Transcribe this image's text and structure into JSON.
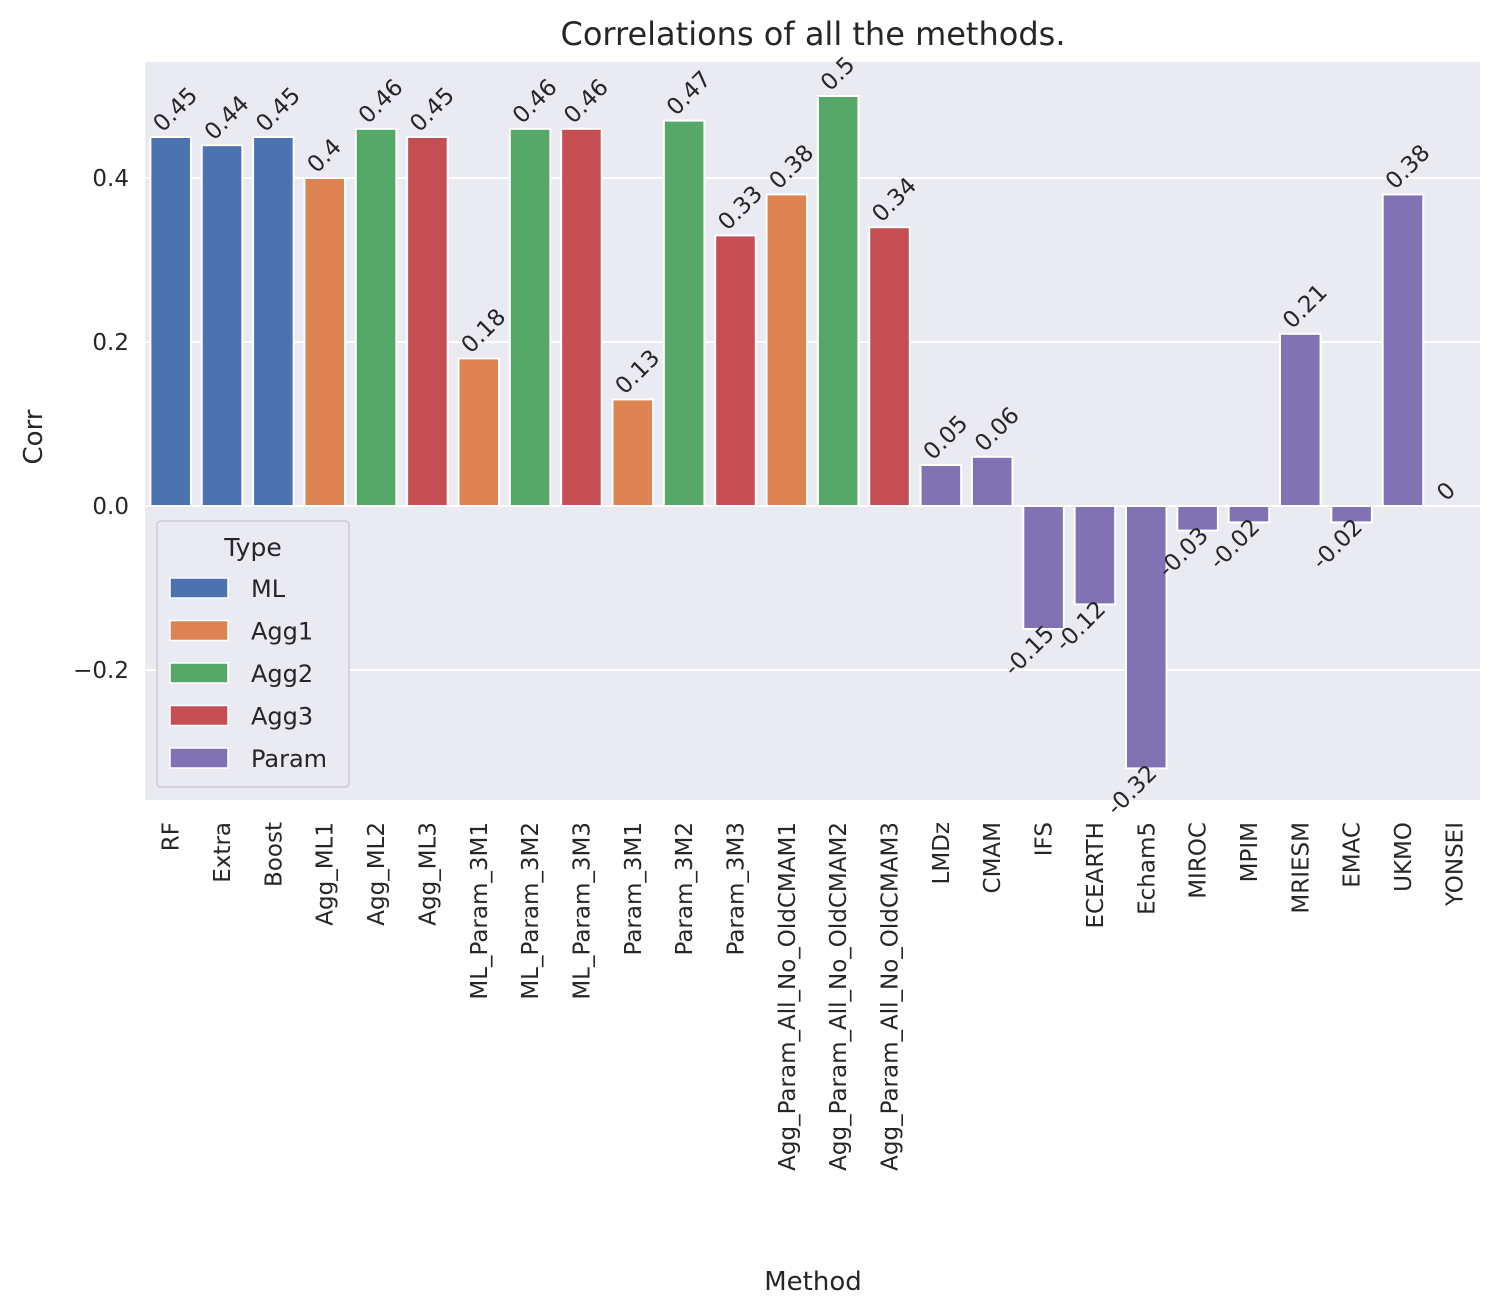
{
  "chart_data": {
    "type": "bar",
    "title": "Correlations of all the methods.",
    "xlabel": "Method",
    "ylabel": "Corr",
    "ylim": [
      -0.36,
      0.54
    ],
    "yticks": [
      -0.2,
      0.0,
      0.2,
      0.4
    ],
    "ytick_labels": [
      "−0.2",
      "0.0",
      "0.2",
      "0.4"
    ],
    "grid": true,
    "legend": {
      "title": "Type",
      "placement": "lower-left",
      "entries": [
        "ML",
        "Agg1",
        "Agg2",
        "Agg3",
        "Param"
      ]
    },
    "colors": {
      "ML": "#4c72b0",
      "Agg1": "#dd8452",
      "Agg2": "#55a868",
      "Agg3": "#c44e52",
      "Param": "#8172b3",
      "background": "#eaeaf2",
      "grid": "#ffffff"
    },
    "categories": [
      "RF",
      "Extra",
      "Boost",
      "Agg_ML1",
      "Agg_ML2",
      "Agg_ML3",
      "ML_Param_3M1",
      "ML_Param_3M2",
      "ML_Param_3M3",
      "Param_3M1",
      "Param_3M2",
      "Param_3M3",
      "Agg_Param_All_No_OldCMAM1",
      "Agg_Param_All_No_OldCMAM2",
      "Agg_Param_All_No_OldCMAM3",
      "LMDz",
      "CMAM",
      "IFS",
      "ECEARTH",
      "Echam5",
      "MIROC",
      "MPIM",
      "MRIESM",
      "EMAC",
      "UKMO",
      "YONSEI"
    ],
    "values": [
      0.45,
      0.44,
      0.45,
      0.4,
      0.46,
      0.45,
      0.18,
      0.46,
      0.46,
      0.13,
      0.47,
      0.33,
      0.38,
      0.5,
      0.34,
      0.05,
      0.06,
      -0.15,
      -0.12,
      -0.32,
      -0.03,
      -0.02,
      0.21,
      -0.02,
      0.38,
      0
    ],
    "value_labels": [
      "0.45",
      "0.44",
      "0.45",
      "0.4",
      "0.46",
      "0.45",
      "0.18",
      "0.46",
      "0.46",
      "0.13",
      "0.47",
      "0.33",
      "0.38",
      "0.5",
      "0.34",
      "0.05",
      "0.06",
      "-0.15",
      "-0.12",
      "-0.32",
      "-0.03",
      "-0.02",
      "0.21",
      "-0.02",
      "0.38",
      "0"
    ],
    "types": [
      "ML",
      "ML",
      "ML",
      "Agg1",
      "Agg2",
      "Agg3",
      "Agg1",
      "Agg2",
      "Agg3",
      "Agg1",
      "Agg2",
      "Agg3",
      "Agg1",
      "Agg2",
      "Agg3",
      "Param",
      "Param",
      "Param",
      "Param",
      "Param",
      "Param",
      "Param",
      "Param",
      "Param",
      "Param",
      "Param"
    ]
  }
}
